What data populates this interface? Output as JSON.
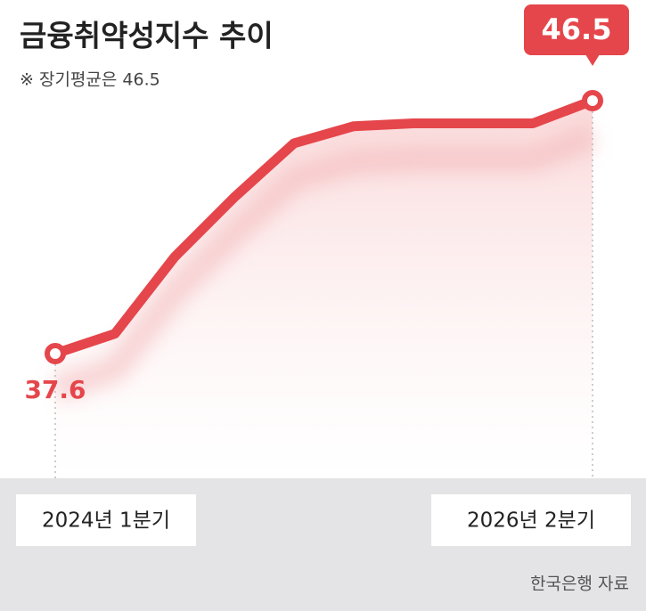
{
  "chart_data": {
    "type": "line",
    "title": "금융취약성지수 추이",
    "subtitle": "※ 장기평균은 46.5",
    "source": "한국은행 자료",
    "categories": [
      "2024년 1분기",
      null,
      null,
      null,
      null,
      null,
      null,
      null,
      null,
      "2026년 2분기"
    ],
    "values": [
      37.6,
      38.3,
      41.0,
      43.1,
      45.0,
      45.6,
      45.7,
      45.7,
      45.7,
      46.5
    ],
    "color": "#e5464b"
  }
}
